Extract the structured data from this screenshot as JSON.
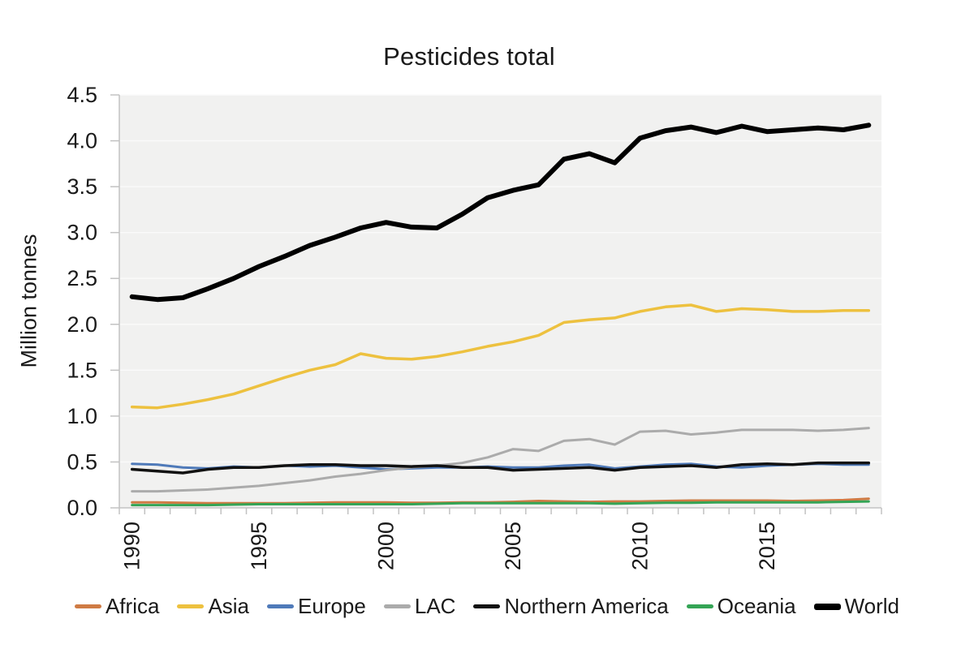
{
  "chart_data": {
    "type": "line",
    "title": "Pesticides total",
    "xlabel": "",
    "ylabel": "Million tonnes",
    "ylim": [
      0.0,
      4.5
    ],
    "ytick_step": 0.5,
    "ytick_labels": [
      "0.0",
      "0.5",
      "1.0",
      "1.5",
      "2.0",
      "2.5",
      "3.0",
      "3.5",
      "4.0",
      "4.5"
    ],
    "x": [
      1990,
      1991,
      1992,
      1993,
      1994,
      1995,
      1996,
      1997,
      1998,
      1999,
      2000,
      2001,
      2002,
      2003,
      2004,
      2005,
      2006,
      2007,
      2008,
      2009,
      2010,
      2011,
      2012,
      2013,
      2014,
      2015,
      2016,
      2017,
      2018,
      2019
    ],
    "xtick_label_years": [
      1990,
      1995,
      2000,
      2005,
      2010,
      2015
    ],
    "xtick_labels": [
      "1990",
      "1995",
      "2000",
      "2005",
      "2010",
      "2015"
    ],
    "grid": "subtle horizontal gridlines on light gray panel",
    "legend_position": "bottom",
    "plot_bg": "#f1f1f0",
    "axis_color": "#c2c2c2",
    "gridline_color": "#fafafa",
    "text_color": "#1a1a1a",
    "series": [
      {
        "name": "Africa",
        "color": "#cf7b44",
        "line_width": 3,
        "values": [
          0.06,
          0.06,
          0.055,
          0.05,
          0.05,
          0.05,
          0.05,
          0.055,
          0.06,
          0.06,
          0.06,
          0.055,
          0.055,
          0.06,
          0.06,
          0.065,
          0.075,
          0.07,
          0.065,
          0.07,
          0.07,
          0.075,
          0.08,
          0.08,
          0.08,
          0.08,
          0.075,
          0.08,
          0.085,
          0.1
        ]
      },
      {
        "name": "Asia",
        "color": "#edc13f",
        "line_width": 3.5,
        "values": [
          1.1,
          1.09,
          1.13,
          1.18,
          1.24,
          1.33,
          1.42,
          1.5,
          1.56,
          1.68,
          1.63,
          1.62,
          1.65,
          1.7,
          1.76,
          1.81,
          1.88,
          2.02,
          2.05,
          2.07,
          2.14,
          2.19,
          2.21,
          2.14,
          2.17,
          2.16,
          2.14,
          2.14,
          2.15,
          2.15
        ]
      },
      {
        "name": "Europe",
        "color": "#4f7ab9",
        "line_width": 3,
        "values": [
          0.48,
          0.47,
          0.44,
          0.43,
          0.45,
          0.44,
          0.46,
          0.45,
          0.46,
          0.44,
          0.42,
          0.43,
          0.44,
          0.44,
          0.45,
          0.44,
          0.44,
          0.46,
          0.47,
          0.43,
          0.45,
          0.47,
          0.48,
          0.45,
          0.44,
          0.46,
          0.47,
          0.48,
          0.47,
          0.47
        ]
      },
      {
        "name": "LAC",
        "color": "#ababab",
        "line_width": 3,
        "values": [
          0.18,
          0.18,
          0.19,
          0.2,
          0.22,
          0.24,
          0.27,
          0.3,
          0.34,
          0.37,
          0.41,
          0.44,
          0.46,
          0.49,
          0.55,
          0.64,
          0.62,
          0.73,
          0.75,
          0.69,
          0.83,
          0.84,
          0.8,
          0.82,
          0.85,
          0.85,
          0.85,
          0.84,
          0.85,
          0.87
        ]
      },
      {
        "name": "Northern America",
        "color": "#121212",
        "line_width": 3.5,
        "values": [
          0.42,
          0.4,
          0.38,
          0.42,
          0.44,
          0.44,
          0.46,
          0.47,
          0.47,
          0.46,
          0.46,
          0.45,
          0.46,
          0.44,
          0.44,
          0.41,
          0.42,
          0.43,
          0.44,
          0.41,
          0.44,
          0.45,
          0.46,
          0.44,
          0.47,
          0.48,
          0.47,
          0.49,
          0.49,
          0.49
        ]
      },
      {
        "name": "Oceania",
        "color": "#34a455",
        "line_width": 3,
        "values": [
          0.03,
          0.03,
          0.03,
          0.03,
          0.035,
          0.04,
          0.04,
          0.04,
          0.04,
          0.04,
          0.04,
          0.04,
          0.045,
          0.05,
          0.05,
          0.05,
          0.05,
          0.05,
          0.05,
          0.045,
          0.05,
          0.055,
          0.055,
          0.06,
          0.06,
          0.06,
          0.06,
          0.06,
          0.065,
          0.07
        ]
      },
      {
        "name": "World",
        "color": "#000000",
        "line_width": 6,
        "values": [
          2.3,
          2.27,
          2.29,
          2.39,
          2.5,
          2.63,
          2.74,
          2.86,
          2.95,
          3.05,
          3.11,
          3.06,
          3.05,
          3.2,
          3.38,
          3.46,
          3.52,
          3.8,
          3.86,
          3.76,
          4.03,
          4.11,
          4.15,
          4.09,
          4.16,
          4.1,
          4.12,
          4.14,
          4.12,
          4.17
        ]
      }
    ]
  }
}
